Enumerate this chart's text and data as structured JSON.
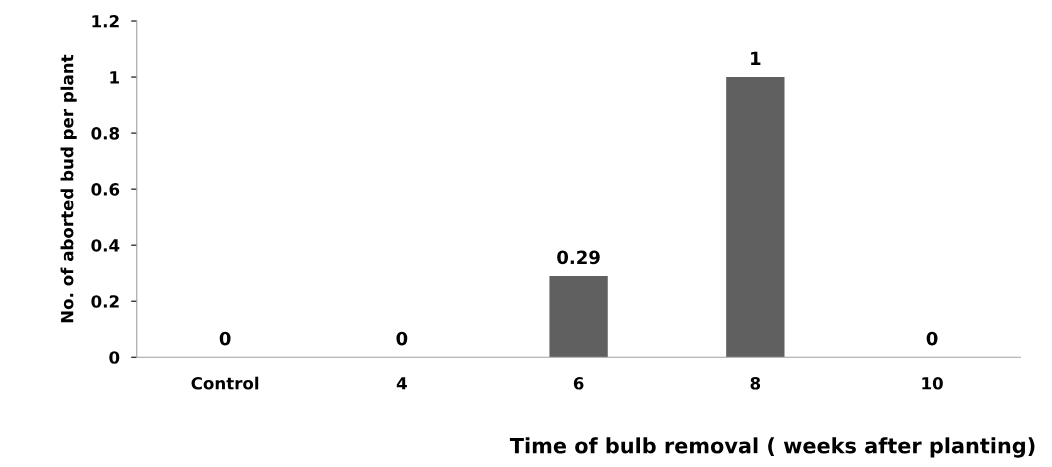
{
  "chart_data": {
    "type": "bar",
    "xlabel": "Time of bulb removal ( weeks after planting)",
    "ylabel": "No. of aborted bud per plant",
    "categories": [
      "Control",
      "4",
      "6",
      "8",
      "10"
    ],
    "values": [
      0,
      0,
      0.29,
      1,
      0
    ],
    "color": "#606060",
    "ylim": [
      0,
      1.2
    ],
    "yticks": [
      0,
      0.2,
      0.4,
      0.6,
      0.8,
      1,
      1.2
    ],
    "data_labels": true
  }
}
